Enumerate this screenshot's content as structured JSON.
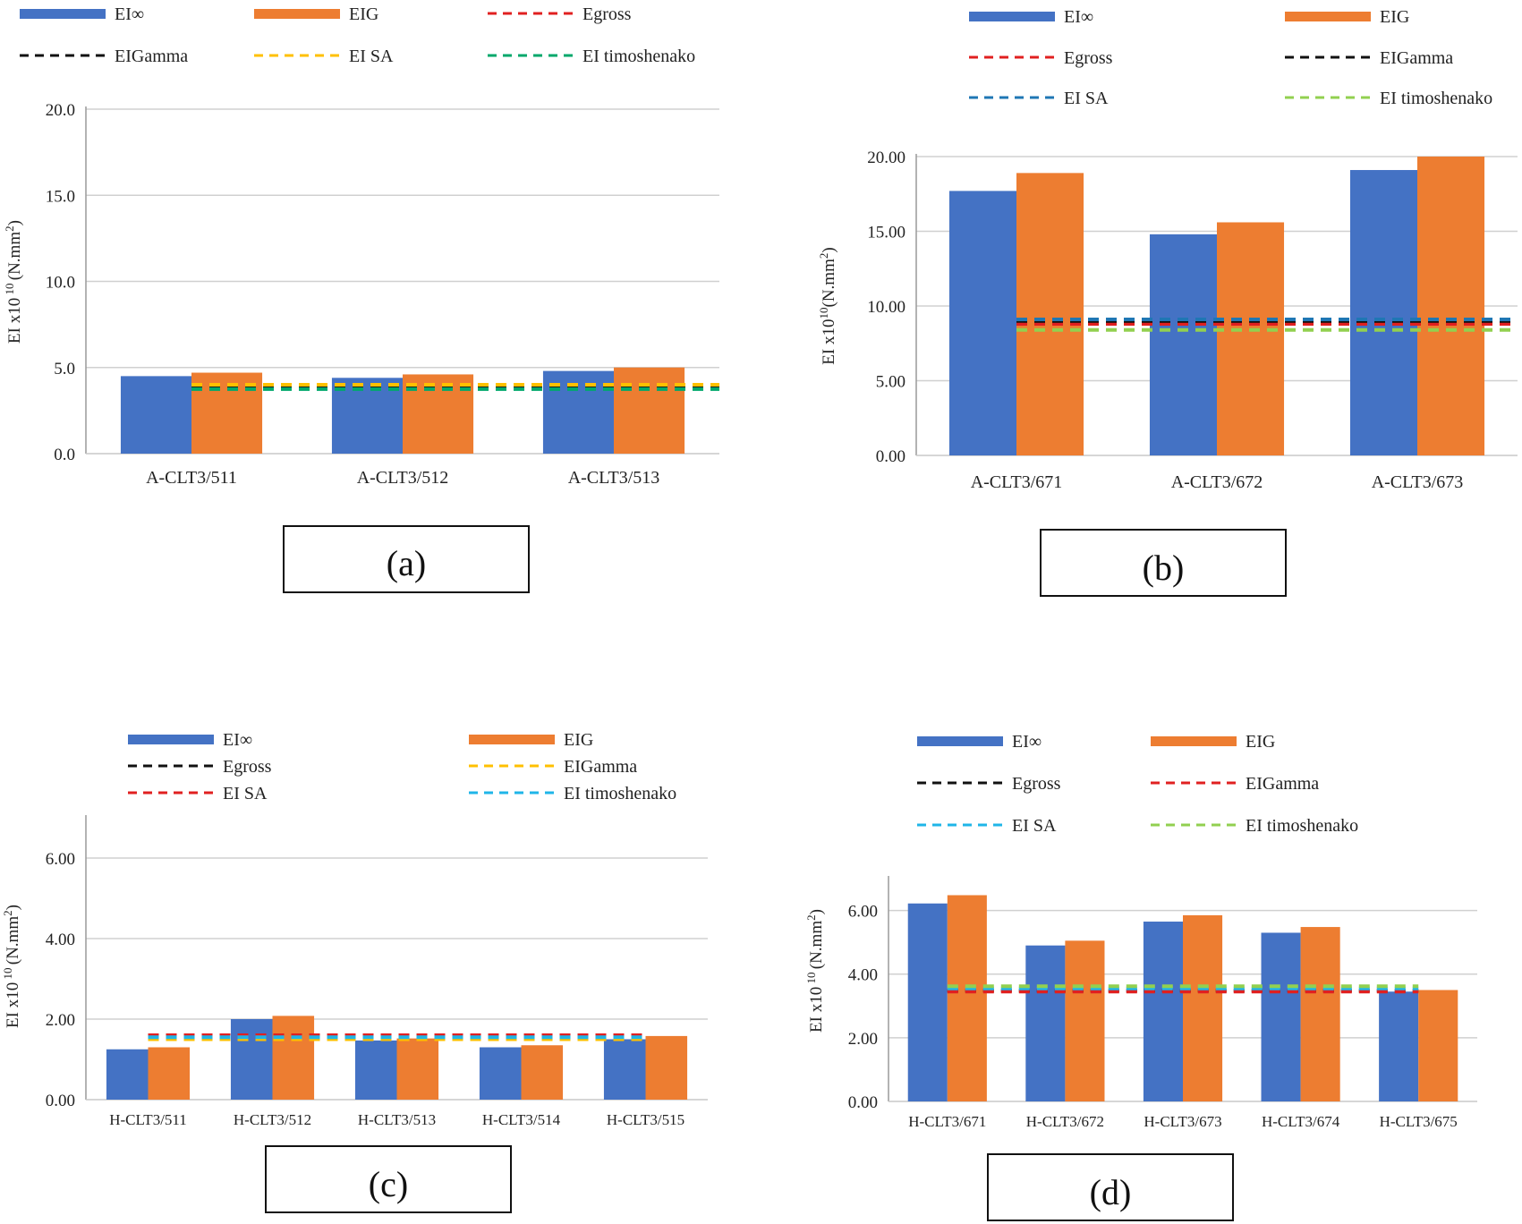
{
  "chart_data": [
    {
      "id": "a",
      "type": "bar",
      "caption": "(a)",
      "ylabel_main": "EI x10",
      "ylabel_sup": " 10 ",
      "ylabel_unit": "(N.mm",
      "ylabel_unit_sup": "2",
      "ylabel_close": ")",
      "ylim": [
        0,
        20
      ],
      "ticks": [
        "0.0",
        "5.0",
        "10.0",
        "15.0",
        "20.0"
      ],
      "tick_values": [
        0,
        5,
        10,
        15,
        20
      ],
      "categories": [
        "A-CLT3/511",
        "A-CLT3/512",
        "A-CLT3/513"
      ],
      "series": [
        {
          "name": "EI∞",
          "kind": "bar",
          "color": "#4472C4",
          "values": [
            4.5,
            4.4,
            4.8
          ]
        },
        {
          "name": "EIG",
          "kind": "bar",
          "color": "#ED7D31",
          "values": [
            4.7,
            4.6,
            5.0
          ]
        }
      ],
      "lines": [
        {
          "name": "Egross",
          "color": "#E02020",
          "value": 4.0
        },
        {
          "name": "EIGamma",
          "color": "#111111",
          "value": 3.8
        },
        {
          "name": "EI SA",
          "color": "#FFC000",
          "value": 4.0
        },
        {
          "name": "EI timoshenako",
          "color": "#00A86B",
          "value": 3.75
        }
      ],
      "legend_rows": [
        [
          "EI∞",
          "EIG",
          "Egross"
        ],
        [
          "EIGamma",
          "EI SA",
          "EI timoshenako"
        ]
      ]
    },
    {
      "id": "b",
      "type": "bar",
      "caption": "(b)",
      "ylabel_main": "EI x10",
      "ylabel_sup": "10",
      "ylabel_unit": "(N.mm",
      "ylabel_unit_sup": "2",
      "ylabel_close": ")",
      "ylim": [
        0,
        20
      ],
      "ticks": [
        "0.00",
        "5.00",
        "10.00",
        "15.00",
        "20.00"
      ],
      "tick_values": [
        0,
        5,
        10,
        15,
        20
      ],
      "categories": [
        "A-CLT3/671",
        "A-CLT3/672",
        "A-CLT3/673"
      ],
      "series": [
        {
          "name": "EI∞",
          "kind": "bar",
          "color": "#4472C4",
          "values": [
            17.7,
            14.8,
            19.1
          ]
        },
        {
          "name": "EIG",
          "kind": "bar",
          "color": "#ED7D31",
          "values": [
            18.9,
            15.6,
            20.0
          ]
        }
      ],
      "lines": [
        {
          "name": "Egross",
          "color": "#E02020",
          "value": 8.8
        },
        {
          "name": "EIGamma",
          "color": "#111111",
          "value": 9.0
        },
        {
          "name": "EI SA",
          "color": "#1F77B4",
          "value": 9.1
        },
        {
          "name": "EI timoshenako",
          "color": "#92D050",
          "value": 8.4
        }
      ],
      "legend_rows": [
        [
          "EI∞",
          "EIG"
        ],
        [
          "Egross",
          "EIGamma"
        ],
        [
          "EI SA",
          "EI timoshenako"
        ]
      ]
    },
    {
      "id": "c",
      "type": "bar",
      "caption": "(c)",
      "ylabel_main": "EI x10",
      "ylabel_sup": " 10 ",
      "ylabel_unit": "(N.mm",
      "ylabel_unit_sup": "2",
      "ylabel_close": ")",
      "ylim": [
        0,
        7
      ],
      "ticks": [
        "0.00",
        "2.00",
        "4.00",
        "6.00"
      ],
      "tick_values": [
        0,
        2,
        4,
        6
      ],
      "categories": [
        "H-CLT3/511",
        "H-CLT3/512",
        "H-CLT3/513",
        "H-CLT3/514",
        "H-CLT3/515"
      ],
      "series": [
        {
          "name": "EI∞",
          "kind": "bar",
          "color": "#4472C4",
          "values": [
            1.25,
            2.0,
            1.47,
            1.3,
            1.5
          ]
        },
        {
          "name": "EIG",
          "kind": "bar",
          "color": "#ED7D31",
          "values": [
            1.3,
            2.08,
            1.52,
            1.35,
            1.58
          ]
        }
      ],
      "lines": [
        {
          "name": "Egross",
          "color": "#111111",
          "value": 1.58
        },
        {
          "name": "EIGamma",
          "color": "#FFC000",
          "value": 1.5
        },
        {
          "name": "EI SA",
          "color": "#E02020",
          "value": 1.6
        },
        {
          "name": "EI timoshenako",
          "color": "#1FB5E8",
          "value": 1.55
        }
      ],
      "legend_rows": [
        [
          "EI∞",
          "EIG"
        ],
        [
          "Egross",
          "EIGamma"
        ],
        [
          "EI SA",
          "EI timoshenako"
        ]
      ]
    },
    {
      "id": "d",
      "type": "bar",
      "caption": "(d)",
      "ylabel_main": "EI x10",
      "ylabel_sup": " 10 ",
      "ylabel_unit": "(N.mm",
      "ylabel_unit_sup": "2",
      "ylabel_close": ")",
      "ylim": [
        0,
        7
      ],
      "ticks": [
        "0.00",
        "2.00",
        "4.00",
        "6.00"
      ],
      "tick_values": [
        0,
        2,
        4,
        6
      ],
      "categories": [
        "H-CLT3/671",
        "H-CLT3/672",
        "H-CLT3/673",
        "H-CLT3/674",
        "H-CLT3/675"
      ],
      "series": [
        {
          "name": "EI∞",
          "kind": "bar",
          "color": "#4472C4",
          "values": [
            6.22,
            4.9,
            5.65,
            5.3,
            3.45
          ]
        },
        {
          "name": "EIG",
          "kind": "bar",
          "color": "#ED7D31",
          "values": [
            6.48,
            5.05,
            5.85,
            5.48,
            3.5
          ]
        }
      ],
      "lines": [
        {
          "name": "Egross",
          "color": "#111111",
          "value": 3.48
        },
        {
          "name": "EIGamma",
          "color": "#E02020",
          "value": 3.45
        },
        {
          "name": "EI SA",
          "color": "#1FB5E8",
          "value": 3.55
        },
        {
          "name": "EI timoshenako",
          "color": "#92D050",
          "value": 3.62
        }
      ],
      "legend_rows": [
        [
          "EI∞",
          "EIG"
        ],
        [
          "Egross",
          "EIGamma"
        ],
        [
          "EI SA",
          "EI timoshenako"
        ]
      ]
    }
  ]
}
